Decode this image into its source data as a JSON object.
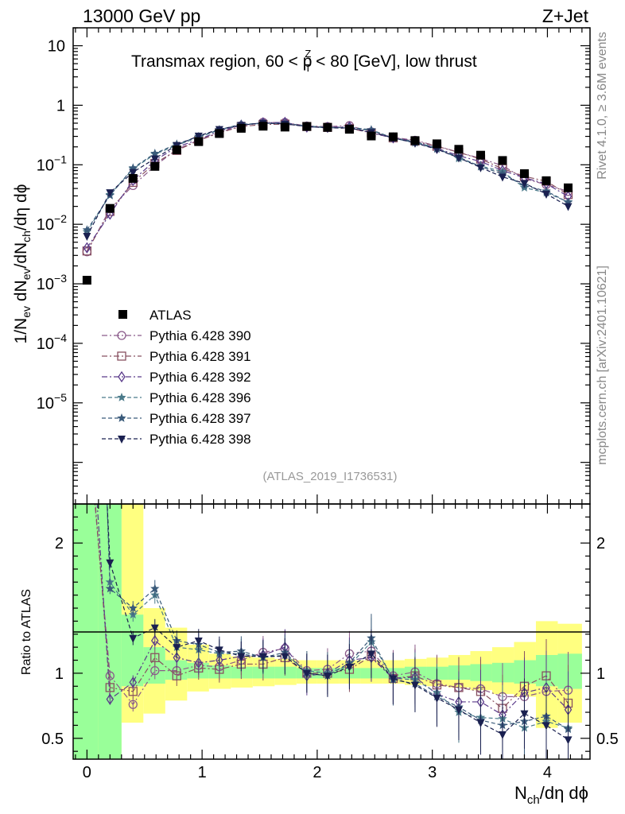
{
  "header": {
    "left": "13000 GeV pp",
    "right": "Z+Jet"
  },
  "side_labels": {
    "rivet": "Rivet 4.1.0, ≥ 3.6M events",
    "mcplots": "mcplots.cern.ch [arXiv:2401.10621]"
  },
  "chart_data": {
    "type": "scatter",
    "title": "Transmax region, 60 < p_T^Z < 80 [GeV], low thrust",
    "title_parts": {
      "pre": "Transmax region, 60 < p",
      "sup": "Z",
      "sub": "T",
      "post": " < 80 [GeV], low thrust"
    },
    "analysis_id": "(ATLAS_2019_I1736531)",
    "xlabel": {
      "main": "N",
      "sub": "ch",
      "rest": "/dη dϕ"
    },
    "ylabel": "1/N_ev dN_ev/dN_ch/dη dϕ",
    "ratio_ylabel": "Ratio to ATLAS",
    "xlim": [
      -0.12,
      4.37
    ],
    "ylim_log": [
      2e-07,
      20
    ],
    "ratio_ylim": [
      0.34,
      2.3
    ],
    "y_ticks": [
      {
        "v": 10,
        "b": "10",
        "e": ""
      },
      {
        "v": 1,
        "b": "1",
        "e": ""
      },
      {
        "v": 0.1,
        "b": "10",
        "e": "−1"
      },
      {
        "v": 0.01,
        "b": "10",
        "e": "−2"
      },
      {
        "v": 0.001,
        "b": "10",
        "e": "−3"
      },
      {
        "v": 0.0001,
        "b": "10",
        "e": "−4"
      },
      {
        "v": 1e-05,
        "b": "10",
        "e": "−5"
      }
    ],
    "x_ticks": [
      "0",
      "1",
      "2",
      "3",
      "4"
    ],
    "ratio_ticks": [
      "0.5",
      "1",
      "2"
    ],
    "x": [
      0.0,
      0.2,
      0.4,
      0.59,
      0.78,
      0.97,
      1.15,
      1.34,
      1.53,
      1.72,
      1.91,
      2.09,
      2.28,
      2.47,
      2.66,
      2.85,
      3.04,
      3.23,
      3.42,
      3.61,
      3.8,
      3.99,
      4.18
    ],
    "data": {
      "name": "ATLAS",
      "values": [
        0.00115,
        0.0185,
        0.059,
        0.094,
        0.178,
        0.245,
        0.335,
        0.41,
        0.445,
        0.43,
        0.44,
        0.425,
        0.395,
        0.305,
        0.295,
        0.255,
        0.225,
        0.182,
        0.145,
        0.118,
        0.071,
        0.054,
        0.041
      ]
    },
    "band_edges": [
      -0.12,
      0.1,
      0.3,
      0.49,
      0.68,
      0.87,
      1.06,
      1.25,
      1.44,
      1.63,
      1.82,
      2.0,
      2.19,
      2.38,
      2.57,
      2.76,
      2.95,
      3.14,
      3.33,
      3.52,
      3.71,
      3.9,
      4.09,
      4.3
    ],
    "band_green": [
      [
        0.34,
        2.3
      ],
      [
        0.34,
        2.3
      ],
      [
        0.9,
        1.45
      ],
      [
        0.92,
        1.2
      ],
      [
        0.95,
        1.1
      ],
      [
        0.96,
        1.08
      ],
      [
        0.96,
        1.06
      ],
      [
        0.96,
        1.05
      ],
      [
        0.96,
        1.05
      ],
      [
        0.96,
        1.05
      ],
      [
        0.96,
        1.04
      ],
      [
        0.96,
        1.04
      ],
      [
        0.96,
        1.04
      ],
      [
        0.96,
        1.04
      ],
      [
        0.96,
        1.04
      ],
      [
        0.95,
        1.05
      ],
      [
        0.95,
        1.05
      ],
      [
        0.95,
        1.06
      ],
      [
        0.94,
        1.07
      ],
      [
        0.93,
        1.08
      ],
      [
        0.92,
        1.1
      ],
      [
        0.9,
        1.14
      ],
      [
        0.88,
        1.15
      ]
    ],
    "band_yellow": [
      [
        0.34,
        2.3
      ],
      [
        0.34,
        2.3
      ],
      [
        0.62,
        2.3
      ],
      [
        0.69,
        1.5
      ],
      [
        0.79,
        1.35
      ],
      [
        0.86,
        1.22
      ],
      [
        0.88,
        1.15
      ],
      [
        0.89,
        1.13
      ],
      [
        0.9,
        1.12
      ],
      [
        0.91,
        1.11
      ],
      [
        0.92,
        1.1
      ],
      [
        0.92,
        1.1
      ],
      [
        0.92,
        1.1
      ],
      [
        0.92,
        1.1
      ],
      [
        0.92,
        1.1
      ],
      [
        0.91,
        1.11
      ],
      [
        0.9,
        1.12
      ],
      [
        0.89,
        1.14
      ],
      [
        0.87,
        1.17
      ],
      [
        0.84,
        1.2
      ],
      [
        0.82,
        1.24
      ],
      [
        0.58,
        1.4
      ],
      [
        0.62,
        1.38
      ]
    ],
    "series": [
      {
        "name": "Pythia 6.428 390",
        "color": "#8a5a8a",
        "marker": "circle",
        "dash": "7,3,2,3",
        "ratio": [
          3.0,
          0.98,
          0.76,
          1.02,
          1.02,
          1.06,
          1.05,
          1.1,
          1.16,
          1.19,
          1.02,
          1.03,
          1.15,
          1.17,
          0.98,
          1.01,
          0.92,
          0.89,
          0.88,
          0.82,
          0.82,
          0.86,
          0.87
        ]
      },
      {
        "name": "Pythia 6.428 391",
        "color": "#885060",
        "marker": "square",
        "dash": "7,3,2,3",
        "ratio": [
          3.1,
          0.89,
          0.86,
          1.12,
          0.98,
          1.04,
          1.03,
          1.07,
          1.07,
          1.12,
          1.0,
          1.0,
          1.03,
          1.13,
          0.96,
          0.98,
          0.91,
          0.89,
          0.86,
          0.73,
          0.9,
          0.98,
          0.77
        ]
      },
      {
        "name": "Pythia 6.428 392",
        "color": "#5a3a8a",
        "marker": "diamond",
        "dash": "7,3,2,3",
        "ratio": [
          3.5,
          0.8,
          0.93,
          1.25,
          1.12,
          1.08,
          1.1,
          1.13,
          1.14,
          1.2,
          0.98,
          1.0,
          1.1,
          1.12,
          0.96,
          0.97,
          0.84,
          0.78,
          0.78,
          0.68,
          0.85,
          0.89,
          0.72
        ]
      },
      {
        "name": "Pythia 6.428 396",
        "color": "#4a7a8a",
        "marker": "star",
        "dash": "5,3",
        "ratio": [
          6.5,
          1.7,
          1.45,
          1.6,
          1.2,
          1.18,
          1.15,
          1.15,
          1.12,
          1.14,
          1.02,
          1.0,
          1.06,
          1.24,
          0.96,
          0.95,
          0.85,
          0.7,
          0.66,
          0.65,
          0.58,
          0.63,
          0.58
        ]
      },
      {
        "name": "Pythia 6.428 397",
        "color": "#3a5a7a",
        "marker": "star",
        "dash": "5,3",
        "ratio": [
          7.0,
          1.65,
          1.5,
          1.65,
          1.25,
          1.22,
          1.16,
          1.17,
          1.12,
          1.16,
          1.0,
          0.98,
          1.08,
          1.27,
          0.95,
          0.92,
          0.82,
          0.74,
          0.64,
          0.6,
          0.63,
          0.67,
          0.57
        ]
      },
      {
        "name": "Pythia 6.428 398",
        "color": "#1a2050",
        "marker": "tri-down",
        "dash": "5,3",
        "ratio": [
          5.5,
          1.85,
          1.27,
          1.35,
          1.2,
          1.25,
          1.18,
          1.13,
          1.13,
          1.13,
          1.0,
          0.98,
          1.05,
          1.15,
          0.96,
          0.91,
          0.81,
          0.72,
          0.62,
          0.53,
          0.69,
          0.6,
          0.49
        ]
      }
    ]
  }
}
